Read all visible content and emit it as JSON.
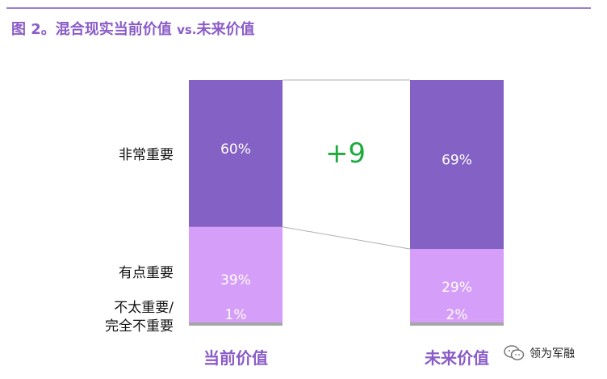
{
  "figure": {
    "title_prefix": "图 2。",
    "title_main": "混合现实当前价值 ",
    "title_vs": "vs.",
    "title_suffix": "未来价值"
  },
  "row_labels": {
    "very_important": "非常重要",
    "somewhat_important": "有点重要",
    "not_important_line1": "不太重要/",
    "not_important_line2": "完全不重要"
  },
  "delta_label": "+9",
  "watermark": {
    "text": "领为军融",
    "icon": "wechat-icon"
  },
  "colors": {
    "very_important": "#8461c4",
    "somewhat_important": "#d59ef9",
    "not_important": "#d59ef9",
    "base_line": "#a6a6a6",
    "title": "#8a5cc7",
    "delta": "#1eaa3c"
  },
  "chart_data": {
    "type": "bar",
    "stacked": true,
    "categories": [
      "当前价值",
      "未来价值"
    ],
    "series": [
      {
        "name": "不太重要/完全不重要",
        "values": [
          1,
          2
        ],
        "labels": [
          "1%",
          "2%"
        ]
      },
      {
        "name": "有点重要",
        "values": [
          39,
          29
        ],
        "labels": [
          "39%",
          "29%"
        ]
      },
      {
        "name": "非常重要",
        "values": [
          60,
          69
        ],
        "labels": [
          "60%",
          "69%"
        ]
      }
    ],
    "ylim": [
      0,
      100
    ],
    "grid": false,
    "annotation": "+9"
  }
}
